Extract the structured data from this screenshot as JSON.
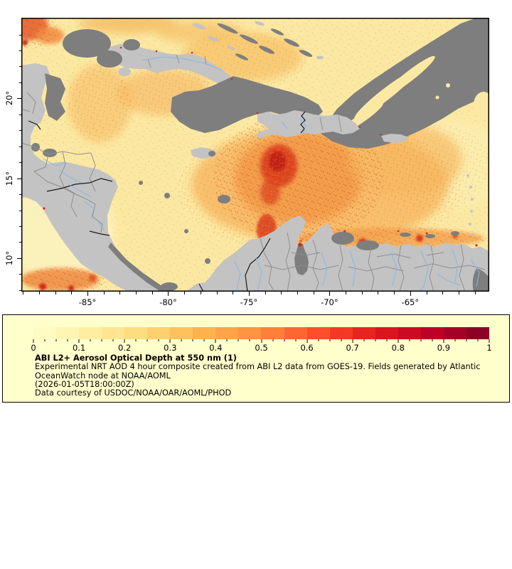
{
  "map": {
    "x_axis": {
      "range": [
        -89.1,
        -60.1
      ],
      "major_ticks": [
        -85,
        -80,
        -75,
        -70,
        -65
      ],
      "labels": [
        "-85°",
        "-80°",
        "-75°",
        "-70°",
        "-65°"
      ],
      "minor_ticks": [
        -89,
        -88,
        -87,
        -86,
        -84,
        -83,
        -82,
        -81,
        -79,
        -78,
        -77,
        -76,
        -74,
        -73,
        -72,
        -71,
        -69,
        -68,
        -67,
        -66,
        -64,
        -63,
        -62,
        -61
      ]
    },
    "y_axis": {
      "range": [
        7.9,
        25.05
      ],
      "major_ticks": [
        20,
        15,
        10
      ],
      "labels": [
        "20°",
        "15°",
        "10°"
      ],
      "minor_ticks": [
        8,
        9,
        11,
        12,
        13,
        14,
        16,
        17,
        18,
        19,
        21,
        22,
        23,
        24
      ]
    },
    "palette": {
      "low_aod_sea": "#fbe9a3",
      "pale_aod": "#fcf2bc",
      "moderate_aod": "#f6b45c",
      "high_aod": "#da3c1f",
      "no_data_land": "#c3c3c3",
      "missing_cloud": "#7e7e7e",
      "admin_border": "#8f8f8f",
      "country_border": "#1a1a1a",
      "river": "#85b7e6",
      "frame": "#000000"
    }
  },
  "legend": {
    "background": "#ffffcc",
    "colorbar": {
      "min": 0,
      "max": 1,
      "segments": 20,
      "minor_tick_step": 0.025,
      "major_tick_labels": [
        "0",
        "0.1",
        "0.2",
        "0.3",
        "0.4",
        "0.5",
        "0.6",
        "0.7",
        "0.8",
        "0.9",
        "1"
      ],
      "colors": [
        "#fffbc3",
        "#fff4b2",
        "#ffeda0",
        "#ffe58f",
        "#fedd7e",
        "#fed16e",
        "#fec25d",
        "#feb24c",
        "#fea346",
        "#fd943f",
        "#fd8038",
        "#fc6731",
        "#fc4e2a",
        "#f23924",
        "#e8241f",
        "#db151e",
        "#cc0a22",
        "#bd0026",
        "#a50026",
        "#8c0026"
      ]
    },
    "title": "ABI L2+ Aerosol Optical Depth at 550 nm (1)",
    "desc_line1": "Experimental NRT AOD 4 hour composite created from ABI L2 data from GOES-19. Fields generated by Atlantic",
    "desc_line2": "OceanWatch node at NOAA/AOML",
    "timestamp_line": "(2026-01-05T18:00:00Z)",
    "courtesy_line": "Data courtesy of USDOC/NOAA/OAR/AOML/PHOD"
  }
}
